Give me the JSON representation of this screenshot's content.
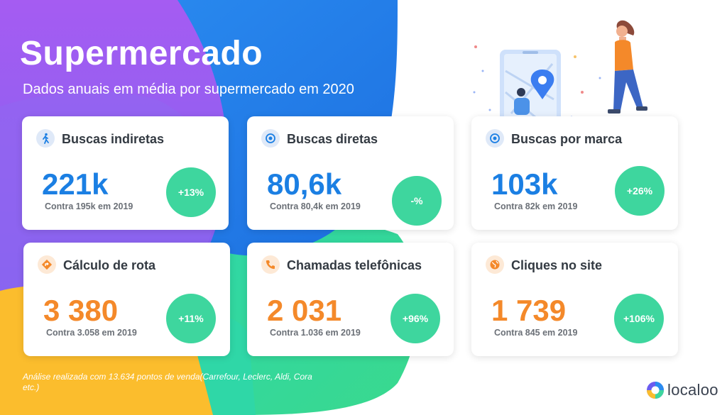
{
  "header": {
    "title": "Supermercado",
    "subtitle": "Dados anuais em média por supermercado em 2020"
  },
  "cards": [
    {
      "title": "Buscas indiretas",
      "value": "221k",
      "comparison": "Contra 195k em 2019",
      "change": "+13%",
      "icon": "walking-person-icon",
      "accent": "#1b7fe3"
    },
    {
      "title": "Buscas diretas",
      "value": "80,6k",
      "comparison": "Contra 80,4k em 2019",
      "change": "-%",
      "icon": "target-icon",
      "accent": "#1b7fe3"
    },
    {
      "title": "Buscas por marca",
      "value": "103k",
      "comparison": "Contra 82k em 2019",
      "change": "+26%",
      "icon": "target-icon",
      "accent": "#1b7fe3"
    },
    {
      "title": "Cálculo de rota",
      "value": "3 380",
      "comparison": "Contra 3.058 em 2019",
      "change": "+11%",
      "icon": "directions-icon",
      "accent": "#f4892a"
    },
    {
      "title": "Chamadas telefônicas",
      "value": "2 031",
      "comparison": "Contra 1.036  em 2019",
      "change": "+96%",
      "icon": "phone-icon",
      "accent": "#f4892a"
    },
    {
      "title": "Cliques no site",
      "value": "1 739",
      "comparison": "Contra 845 em 2019",
      "change": "+106%",
      "icon": "globe-icon",
      "accent": "#f4892a"
    }
  ],
  "footnote": "Análise realizada com 13.634 pontos de venda(Carrefour, Leclerc, Aldi, Cora etc.)",
  "brand": {
    "logo_text": "localoo",
    "badge_color": "#3ed69e",
    "blue": "#1b7fe3",
    "orange": "#f4892a"
  }
}
